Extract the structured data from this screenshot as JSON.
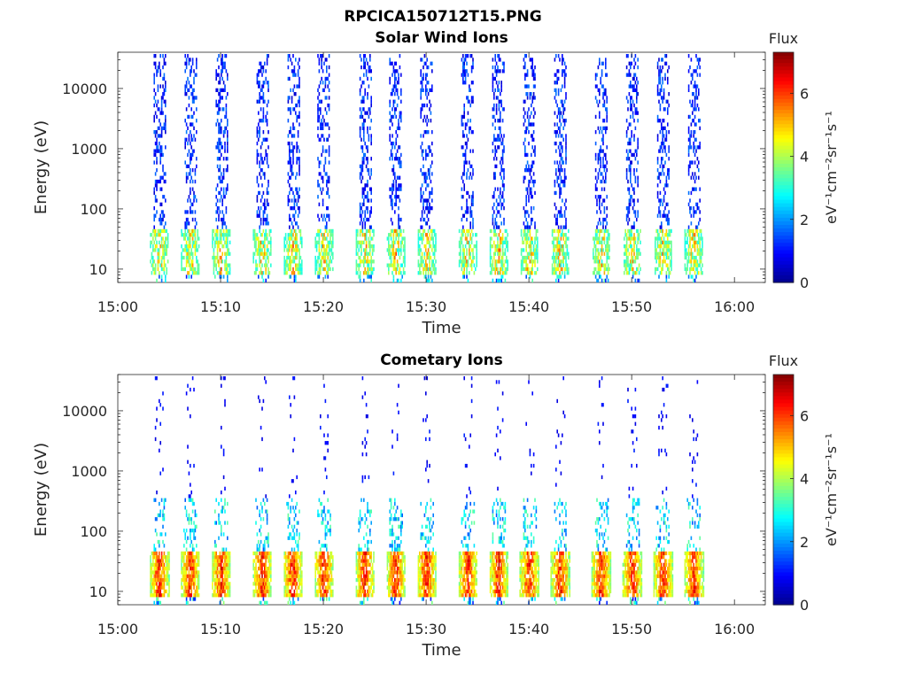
{
  "figure": {
    "suptitle": "RPCICA150712T15.PNG"
  },
  "colormap": [
    "#00008f",
    "#0000ff",
    "#0080ff",
    "#00ffff",
    "#80ff80",
    "#ffff00",
    "#ff8000",
    "#ff0000",
    "#800000"
  ],
  "chart_data": [
    {
      "type": "heatmap",
      "title": "Solar Wind Ions",
      "xlabel": "Time",
      "ylabel": "Energy (eV)",
      "x_ticks": [
        "15:00",
        "15:10",
        "15:20",
        "15:30",
        "15:40",
        "15:50",
        "16:00"
      ],
      "y_ticks": [
        "10",
        "100",
        "1000",
        "10000"
      ],
      "y_scale": "log",
      "xlim": [
        "15:00",
        "16:03"
      ],
      "ylim": [
        6,
        40000
      ],
      "data_range": [
        "15:03",
        "15:57"
      ],
      "scan_peaks": [
        "15:04",
        "15:07",
        "15:10",
        "15:14",
        "15:17",
        "15:20",
        "15:24",
        "15:27",
        "15:30",
        "15:34",
        "15:37",
        "15:40",
        "15:43",
        "15:47",
        "15:50",
        "15:53",
        "15:56"
      ],
      "peak_energy_eV": [
        15,
        40
      ],
      "peak_flux": 5.5,
      "colorbar": {
        "title": "Flux",
        "label": "eV⁻¹cm⁻²sr⁻¹s⁻¹",
        "ticks": [
          "0",
          "2",
          "4",
          "6"
        ],
        "range": [
          0,
          7.3
        ]
      }
    },
    {
      "type": "heatmap",
      "title": "Cometary Ions",
      "xlabel": "Time",
      "ylabel": "Energy (eV)",
      "x_ticks": [
        "15:00",
        "15:10",
        "15:20",
        "15:30",
        "15:40",
        "15:50",
        "16:00"
      ],
      "y_ticks": [
        "10",
        "100",
        "1000",
        "10000"
      ],
      "y_scale": "log",
      "xlim": [
        "15:00",
        "16:03"
      ],
      "ylim": [
        6,
        40000
      ],
      "data_range": [
        "15:03",
        "15:57"
      ],
      "scan_peaks": [
        "15:04",
        "15:07",
        "15:10",
        "15:14",
        "15:17",
        "15:20",
        "15:24",
        "15:27",
        "15:30",
        "15:34",
        "15:37",
        "15:40",
        "15:43",
        "15:47",
        "15:50",
        "15:53",
        "15:56"
      ],
      "peak_energy_eV": [
        15,
        40
      ],
      "peak_flux": 7.0,
      "colorbar": {
        "title": "Flux",
        "label": "eV⁻¹cm⁻²sr⁻¹s⁻¹",
        "ticks": [
          "0",
          "2",
          "4",
          "6"
        ],
        "range": [
          0,
          7.3
        ]
      }
    }
  ]
}
